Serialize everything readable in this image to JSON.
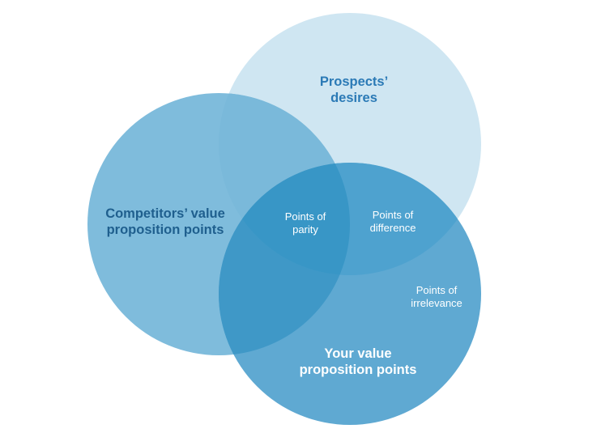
{
  "diagram": {
    "type": "venn",
    "circles": [
      {
        "id": "prospects",
        "label_lines": [
          "Prospects’",
          "desires"
        ],
        "fill": "#cfe6f2",
        "text_color": "#2b7ab6"
      },
      {
        "id": "competitors",
        "label_lines": [
          "Competitors’ value",
          "proposition points"
        ],
        "fill": "#7fbcdc",
        "text_color": "#1f5f8e"
      },
      {
        "id": "yours",
        "label_lines": [
          "Your value",
          "proposition points"
        ],
        "fill": "#5fa9d2",
        "text_color": "#ffffff"
      }
    ],
    "regions": [
      {
        "id": "parity",
        "label_lines": [
          "Points of",
          "parity"
        ],
        "fill": "#3896c6"
      },
      {
        "id": "difference",
        "label_lines": [
          "Points of",
          "difference"
        ],
        "fill": "#4ea2cf"
      },
      {
        "id": "irrelevance",
        "label_lines": [
          "Points of",
          "irrelevance"
        ]
      },
      {
        "id": "prospects-competitors",
        "fill": "#7ab9da"
      },
      {
        "id": "competitors-yours",
        "fill": "#3f98c7"
      }
    ]
  }
}
